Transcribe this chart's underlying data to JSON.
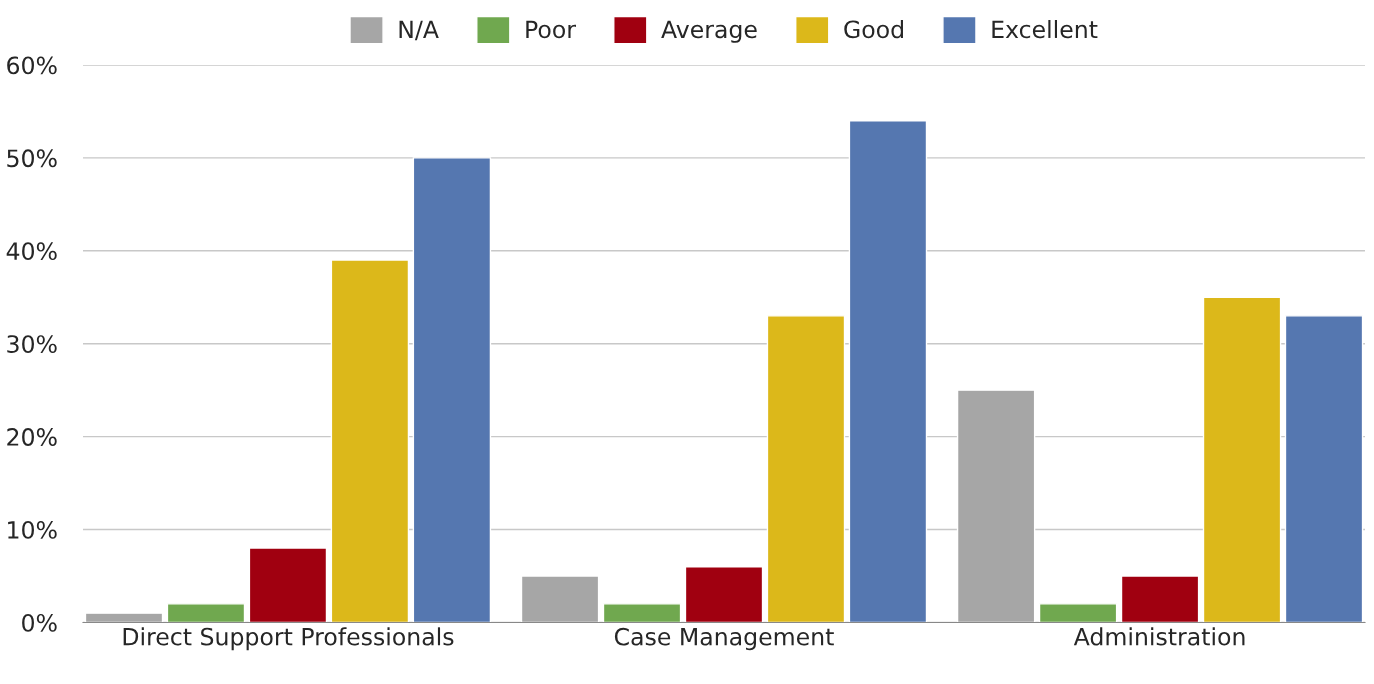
{
  "chart_data": {
    "type": "bar",
    "categories": [
      "Direct Support Professionals",
      "Case Management",
      "Administration"
    ],
    "series": [
      {
        "name": "N/A",
        "color": "#a6a6a6",
        "values": [
          1,
          5,
          25
        ]
      },
      {
        "name": "Poor",
        "color": "#70a84f",
        "values": [
          2,
          2,
          2
        ]
      },
      {
        "name": "Average",
        "color": "#a00010",
        "values": [
          8,
          6,
          5
        ]
      },
      {
        "name": "Good",
        "color": "#dcb81a",
        "values": [
          39,
          33,
          35
        ]
      },
      {
        "name": "Excellent",
        "color": "#5577b0",
        "values": [
          50,
          54,
          33
        ]
      }
    ],
    "ylim": [
      0,
      60
    ],
    "yticks": [
      {
        "value": 0,
        "label": "0%"
      },
      {
        "value": 10,
        "label": "10%"
      },
      {
        "value": 20,
        "label": "20%"
      },
      {
        "value": 30,
        "label": "30%"
      },
      {
        "value": 40,
        "label": "40%"
      },
      {
        "value": 50,
        "label": "50%"
      },
      {
        "value": 60,
        "label": "60%"
      }
    ],
    "grid": "y",
    "legend": "top"
  }
}
